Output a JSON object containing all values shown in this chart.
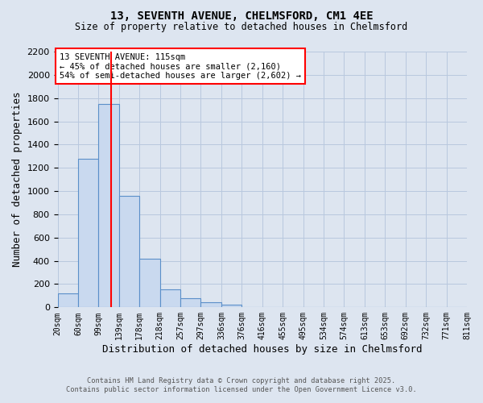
{
  "title_line1": "13, SEVENTH AVENUE, CHELMSFORD, CM1 4EE",
  "title_line2": "Size of property relative to detached houses in Chelmsford",
  "xlabel": "Distribution of detached houses by size in Chelmsford",
  "ylabel": "Number of detached properties",
  "bin_labels": [
    "20sqm",
    "60sqm",
    "99sqm",
    "139sqm",
    "178sqm",
    "218sqm",
    "257sqm",
    "297sqm",
    "336sqm",
    "376sqm",
    "416sqm",
    "455sqm",
    "495sqm",
    "534sqm",
    "574sqm",
    "613sqm",
    "653sqm",
    "692sqm",
    "732sqm",
    "771sqm",
    "811sqm"
  ],
  "bar_heights": [
    120,
    1280,
    1750,
    960,
    420,
    155,
    80,
    45,
    25,
    5,
    0,
    0,
    0,
    0,
    0,
    0,
    0,
    0,
    0,
    0
  ],
  "bar_color": "#c9d9ef",
  "bar_edge_color": "#5b8fc9",
  "property_line_x": 2.6,
  "property_line_color": "red",
  "ylim": [
    0,
    2200
  ],
  "yticks": [
    0,
    200,
    400,
    600,
    800,
    1000,
    1200,
    1400,
    1600,
    1800,
    2000,
    2200
  ],
  "annotation_title": "13 SEVENTH AVENUE: 115sqm",
  "annotation_line2": "← 45% of detached houses are smaller (2,160)",
  "annotation_line3": "54% of semi-detached houses are larger (2,602) →",
  "annotation_box_color": "red",
  "footnote_line1": "Contains HM Land Registry data © Crown copyright and database right 2025.",
  "footnote_line2": "Contains public sector information licensed under the Open Government Licence v3.0.",
  "bg_color": "#dde5f0",
  "plot_bg_color": "#dde5f0",
  "grid_color": "#b8c8de"
}
